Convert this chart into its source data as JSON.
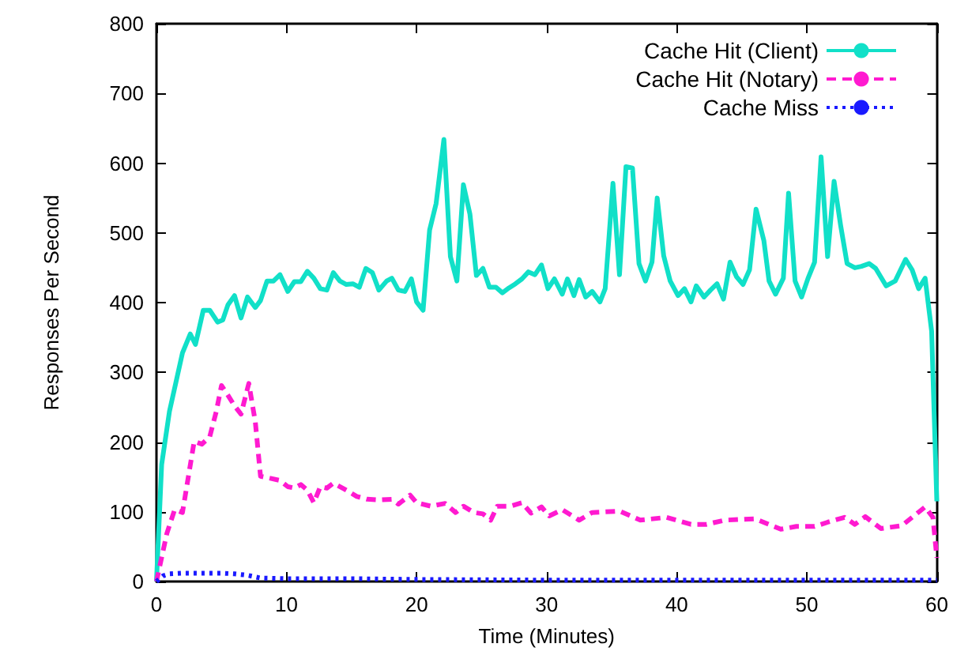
{
  "chart_data": {
    "type": "line",
    "xlabel": "Time (Minutes)",
    "ylabel": "Responses Per Second",
    "xlim": [
      0,
      60
    ],
    "xticks": [
      0,
      10,
      20,
      30,
      40,
      50,
      60
    ],
    "ylim": [
      0,
      800
    ],
    "yticks": [
      0,
      100,
      200,
      300,
      400,
      500,
      600,
      700,
      800
    ],
    "grid": false,
    "legend": "top right",
    "marker": "none",
    "series": [
      {
        "name": "Cache Hit (Client)",
        "color": "#11e0c8",
        "line_style": "solid",
        "x": [
          0,
          0.4,
          1.0,
          2.0,
          2.6,
          3.0,
          3.6,
          4.1,
          4.7,
          5.1,
          5.5,
          6.0,
          6.5,
          7.0,
          7.6,
          8.0,
          8.5,
          9.0,
          9.5,
          10.1,
          10.6,
          11.1,
          11.6,
          12.1,
          12.6,
          13.1,
          13.6,
          14.1,
          14.6,
          15.1,
          15.6,
          16.1,
          16.6,
          17.1,
          17.7,
          18.1,
          18.6,
          19.1,
          19.6,
          20.0,
          20.5,
          21.0,
          21.5,
          22.1,
          22.6,
          23.1,
          23.6,
          24.1,
          24.6,
          25.1,
          25.6,
          26.1,
          26.6,
          27.1,
          27.6,
          28.1,
          28.6,
          29.1,
          29.6,
          30.1,
          30.6,
          31.2,
          31.6,
          32.1,
          32.5,
          33.0,
          33.5,
          34.1,
          34.5,
          35.1,
          35.6,
          36.1,
          36.6,
          37.1,
          37.6,
          38.1,
          38.5,
          39.0,
          39.5,
          40.1,
          40.6,
          41.1,
          41.5,
          42.1,
          42.6,
          43.1,
          43.6,
          44.1,
          44.6,
          45.1,
          45.6,
          46.1,
          46.7,
          47.1,
          47.6,
          48.2,
          48.6,
          49.1,
          49.6,
          50.1,
          50.6,
          51.1,
          51.6,
          52.1,
          52.6,
          53.1,
          53.7,
          54.2,
          54.8,
          55.3,
          56.1,
          56.8,
          57.6,
          58.1,
          58.6,
          59.1,
          59.6,
          60.0
        ],
        "values": [
          0,
          168,
          244,
          328,
          355,
          340,
          389,
          389,
          372,
          375,
          397,
          410,
          378,
          408,
          393,
          403,
          431,
          431,
          440,
          416,
          430,
          430,
          445,
          435,
          420,
          418,
          443,
          431,
          426,
          427,
          422,
          449,
          443,
          418,
          431,
          435,
          418,
          416,
          434,
          401,
          389,
          504,
          542,
          634,
          466,
          431,
          569,
          527,
          439,
          449,
          422,
          422,
          414,
          421,
          427,
          434,
          444,
          440,
          454,
          420,
          434,
          412,
          434,
          410,
          433,
          408,
          416,
          401,
          420,
          571,
          440,
          595,
          593,
          456,
          431,
          458,
          550,
          467,
          431,
          410,
          420,
          401,
          424,
          408,
          418,
          427,
          405,
          458,
          437,
          426,
          447,
          534,
          489,
          431,
          412,
          435,
          557,
          431,
          408,
          435,
          458,
          609,
          466,
          574,
          511,
          456,
          450,
          452,
          456,
          449,
          424,
          431,
          462,
          447,
          420,
          435,
          359,
          115
        ]
      },
      {
        "name": "Cache Hit (Notary)",
        "color": "#ff1ad0",
        "line_style": "dashed",
        "x": [
          0,
          0.8,
          1.4,
          2.0,
          2.9,
          3.5,
          4.1,
          4.6,
          5.0,
          5.5,
          6.0,
          6.5,
          7.1,
          7.6,
          8.0,
          8.5,
          9.5,
          10.1,
          10.6,
          11.1,
          11.6,
          12.1,
          12.6,
          13.1,
          13.6,
          14.6,
          15.4,
          16.2,
          17.1,
          18.1,
          18.6,
          19.5,
          20.0,
          21.1,
          22.2,
          23.0,
          23.6,
          24.4,
          25.1,
          25.7,
          26.2,
          27.2,
          28.1,
          28.8,
          29.6,
          30.2,
          31.2,
          32.5,
          33.5,
          35.6,
          37.2,
          39.2,
          41.1,
          42.3,
          43.7,
          46.0,
          48.0,
          49.2,
          50.6,
          51.6,
          52.9,
          53.7,
          54.5,
          55.7,
          57.3,
          58.3,
          59.1,
          59.7,
          60.0
        ],
        "values": [
          0,
          69,
          103,
          99,
          201,
          197,
          208,
          244,
          281,
          267,
          252,
          240,
          284,
          229,
          151,
          149,
          145,
          136,
          134,
          139,
          131,
          113,
          136,
          134,
          141,
          131,
          122,
          118,
          117,
          118,
          111,
          124,
          113,
          108,
          112,
          99,
          108,
          99,
          97,
          88,
          108,
          108,
          113,
          98,
          107,
          94,
          103,
          88,
          99,
          101,
          88,
          92,
          82,
          82,
          88,
          90,
          75,
          79,
          79,
          85,
          92,
          82,
          93,
          76,
          80,
          95,
          107,
          92,
          34
        ]
      },
      {
        "name": "Cache Miss",
        "color": "#1a1aff",
        "line_style": "dotted",
        "x": [
          0,
          0.5,
          1,
          2,
          3,
          4,
          5,
          6,
          7,
          8,
          10,
          15,
          20,
          30,
          40,
          50,
          60
        ],
        "values": [
          0,
          8,
          11,
          12,
          12,
          12,
          12,
          11,
          9,
          5,
          4,
          4,
          3,
          2,
          2,
          2,
          2
        ]
      }
    ]
  }
}
